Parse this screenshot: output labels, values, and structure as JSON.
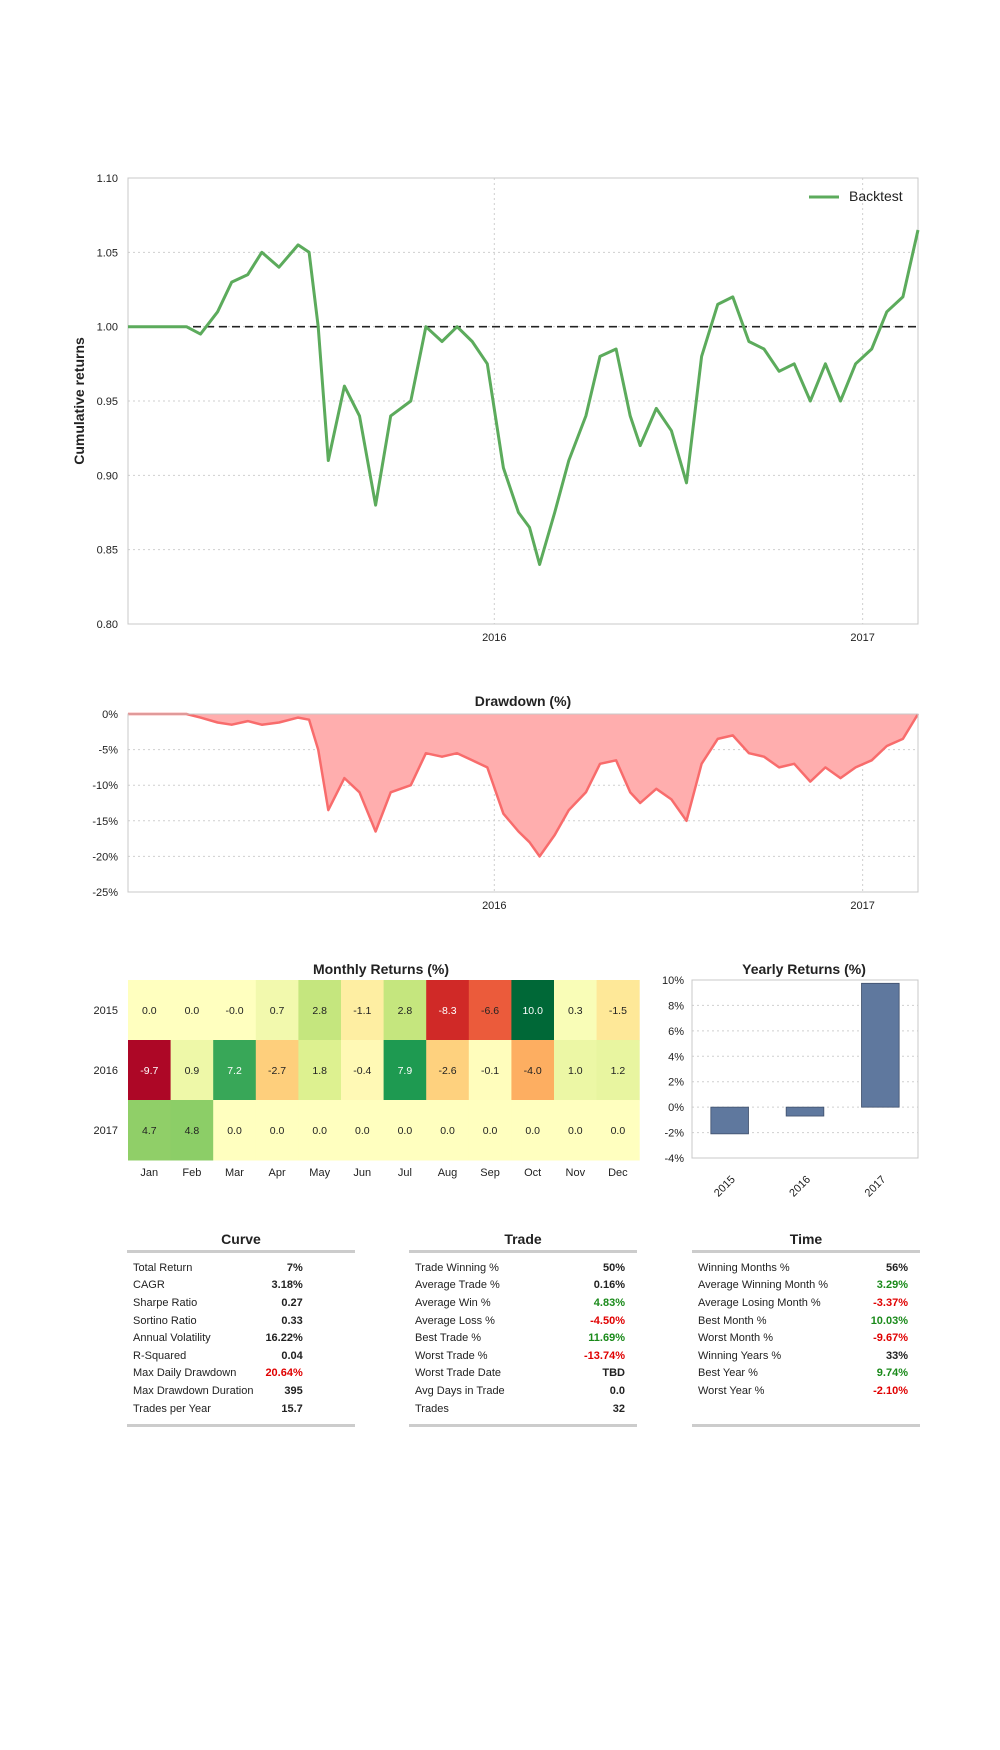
{
  "chart_data": [
    {
      "type": "line",
      "ylabel": "Cumulative returns",
      "legend": "top-right",
      "x_ticks": [
        "2016",
        "2017"
      ],
      "y_ticks": [
        "1.10",
        "1.05",
        "1.00",
        "0.95",
        "0.90",
        "0.85",
        "0.80"
      ],
      "ylim": [
        0.8,
        1.1
      ],
      "xlim": [
        "2015-01-02",
        "2017-02-25"
      ],
      "reference_line": 1.0,
      "grid": true,
      "series": [
        {
          "name": "Backtest",
          "color": "#5cab5c",
          "x": [
            "2015-01-02",
            "2015-02-15",
            "2015-03-01",
            "2015-03-15",
            "2015-04-01",
            "2015-04-15",
            "2015-05-01",
            "2015-05-15",
            "2015-06-01",
            "2015-06-20",
            "2015-07-01",
            "2015-07-10",
            "2015-07-20",
            "2015-08-05",
            "2015-08-20",
            "2015-09-05",
            "2015-09-20",
            "2015-10-10",
            "2015-10-25",
            "2015-11-10",
            "2015-11-25",
            "2015-12-10",
            "2015-12-25",
            "2016-01-10",
            "2016-01-25",
            "2016-02-05",
            "2016-02-15",
            "2016-03-01",
            "2016-03-15",
            "2016-04-01",
            "2016-04-15",
            "2016-05-01",
            "2016-05-15",
            "2016-05-25",
            "2016-06-10",
            "2016-06-25",
            "2016-07-10",
            "2016-07-25",
            "2016-08-10",
            "2016-08-25",
            "2016-09-10",
            "2016-09-25",
            "2016-10-10",
            "2016-10-25",
            "2016-11-10",
            "2016-11-25",
            "2016-12-10",
            "2016-12-25",
            "2017-01-10",
            "2017-01-25",
            "2017-02-10",
            "2017-02-25"
          ],
          "values": [
            1.0,
            1.0,
            1.0,
            0.995,
            1.01,
            1.03,
            1.035,
            1.05,
            1.04,
            1.055,
            1.05,
            1.0,
            0.91,
            0.96,
            0.94,
            0.88,
            0.94,
            0.95,
            1.0,
            0.99,
            1.0,
            0.99,
            0.975,
            0.905,
            0.875,
            0.865,
            0.84,
            0.875,
            0.91,
            0.94,
            0.98,
            0.985,
            0.94,
            0.92,
            0.945,
            0.93,
            0.895,
            0.98,
            1.015,
            1.02,
            0.99,
            0.985,
            0.97,
            0.975,
            0.95,
            0.975,
            0.95,
            0.975,
            0.985,
            1.01,
            1.02,
            1.065
          ]
        }
      ]
    },
    {
      "type": "area",
      "title": "Drawdown (%)",
      "x_ticks": [
        "2016",
        "2017"
      ],
      "y_ticks": [
        "0%",
        "-5%",
        "-10%",
        "-15%",
        "-20%",
        "-25%"
      ],
      "ylim": [
        -25,
        0
      ],
      "xlim": [
        "2015-01-02",
        "2017-02-25"
      ],
      "grid": true,
      "series": [
        {
          "color": "#f86c6c",
          "fill": "#ffaeae",
          "x": [
            "2015-01-02",
            "2015-02-15",
            "2015-03-01",
            "2015-03-15",
            "2015-04-01",
            "2015-04-15",
            "2015-05-01",
            "2015-05-15",
            "2015-06-01",
            "2015-06-20",
            "2015-07-01",
            "2015-07-10",
            "2015-07-20",
            "2015-08-05",
            "2015-08-20",
            "2015-09-05",
            "2015-09-20",
            "2015-10-10",
            "2015-10-25",
            "2015-11-10",
            "2015-11-25",
            "2015-12-10",
            "2015-12-25",
            "2016-01-10",
            "2016-01-25",
            "2016-02-05",
            "2016-02-15",
            "2016-03-01",
            "2016-03-15",
            "2016-04-01",
            "2016-04-15",
            "2016-05-01",
            "2016-05-15",
            "2016-05-25",
            "2016-06-10",
            "2016-06-25",
            "2016-07-10",
            "2016-07-25",
            "2016-08-10",
            "2016-08-25",
            "2016-09-10",
            "2016-09-25",
            "2016-10-10",
            "2016-10-25",
            "2016-11-10",
            "2016-11-25",
            "2016-12-10",
            "2016-12-25",
            "2017-01-10",
            "2017-01-25",
            "2017-02-10",
            "2017-02-25"
          ],
          "values": [
            0,
            0,
            0,
            -0.5,
            -1.2,
            -1.5,
            -1.0,
            -1.5,
            -1.2,
            -0.5,
            -0.8,
            -5.0,
            -13.5,
            -9.0,
            -11.0,
            -16.5,
            -11.0,
            -10.0,
            -5.5,
            -6.0,
            -5.5,
            -6.5,
            -7.5,
            -14.0,
            -16.5,
            -18.0,
            -20.0,
            -17.0,
            -13.5,
            -11.0,
            -7.0,
            -6.5,
            -11.0,
            -12.5,
            -10.5,
            -12.0,
            -15.0,
            -7.0,
            -3.5,
            -3.0,
            -5.5,
            -6.0,
            -7.5,
            -7.0,
            -9.5,
            -7.5,
            -9.0,
            -7.5,
            -6.5,
            -4.5,
            -3.5,
            0
          ]
        }
      ]
    },
    {
      "type": "heatmap",
      "title": "Monthly Returns (%)",
      "rows": [
        "2015",
        "2016",
        "2017"
      ],
      "columns": [
        "Jan",
        "Feb",
        "Mar",
        "Apr",
        "May",
        "Jun",
        "Jul",
        "Aug",
        "Sep",
        "Oct",
        "Nov",
        "Dec"
      ],
      "values": [
        [
          0.0,
          0.0,
          -0.0,
          0.7,
          2.8,
          -1.1,
          2.8,
          -8.3,
          -6.6,
          10.0,
          0.3,
          -1.5
        ],
        [
          -9.7,
          0.9,
          7.2,
          -2.7,
          1.8,
          -0.4,
          7.9,
          -2.6,
          -0.1,
          -4.0,
          1.0,
          1.2
        ],
        [
          4.7,
          4.8,
          0.0,
          0.0,
          0.0,
          0.0,
          0.0,
          0.0,
          0.0,
          0.0,
          0.0,
          0.0
        ]
      ],
      "labels": [
        [
          "0.0",
          "0.0",
          "-0.0",
          "0.7",
          "2.8",
          "-1.1",
          "2.8",
          "-8.3",
          "-6.6",
          "10.0",
          "0.3",
          "-1.5"
        ],
        [
          "-9.7",
          "0.9",
          "7.2",
          "-2.7",
          "1.8",
          "-0.4",
          "7.9",
          "-2.6",
          "-0.1",
          "-4.0",
          "1.0",
          "1.2"
        ],
        [
          "4.7",
          "4.8",
          "0.0",
          "0.0",
          "0.0",
          "0.0",
          "0.0",
          "0.0",
          "0.0",
          "0.0",
          "0.0",
          "0.0"
        ]
      ],
      "colormap": "RdYlGn"
    },
    {
      "type": "bar",
      "title": "Yearly Returns (%)",
      "categories": [
        "2015",
        "2016",
        "2017"
      ],
      "values": [
        -2.1,
        -0.7,
        9.74
      ],
      "y_ticks": [
        "10%",
        "8%",
        "6%",
        "4%",
        "2%",
        "0%",
        "-2%",
        "-4%"
      ],
      "ylim": [
        -4,
        10
      ],
      "bar_color": "#5f789e",
      "grid": true
    }
  ],
  "stats": {
    "curve": {
      "title": "Curve",
      "rows": [
        {
          "label": "Total Return",
          "value": "7%",
          "color": "#222222"
        },
        {
          "label": "CAGR",
          "value": "3.18%",
          "color": "#222222"
        },
        {
          "label": "Sharpe Ratio",
          "value": "0.27",
          "color": "#222222"
        },
        {
          "label": "Sortino Ratio",
          "value": "0.33",
          "color": "#222222"
        },
        {
          "label": "Annual Volatility",
          "value": "16.22%",
          "color": "#222222"
        },
        {
          "label": "R-Squared",
          "value": "0.04",
          "color": "#222222"
        },
        {
          "label": "Max Daily Drawdown",
          "value": "20.64%",
          "color": "#e00000"
        },
        {
          "label": "Max Drawdown Duration",
          "value": "395",
          "color": "#222222"
        },
        {
          "label": "Trades per Year",
          "value": "15.7",
          "color": "#222222"
        }
      ]
    },
    "trade": {
      "title": "Trade",
      "rows": [
        {
          "label": "Trade Winning %",
          "value": "50%",
          "color": "#222222"
        },
        {
          "label": "Average Trade %",
          "value": "0.16%",
          "color": "#222222"
        },
        {
          "label": "Average Win %",
          "value": "4.83%",
          "color": "#1a8a1a"
        },
        {
          "label": "Average Loss %",
          "value": "-4.50%",
          "color": "#e00000"
        },
        {
          "label": "Best Trade %",
          "value": "11.69%",
          "color": "#1a8a1a"
        },
        {
          "label": "Worst Trade %",
          "value": "-13.74%",
          "color": "#e00000"
        },
        {
          "label": "Worst Trade Date",
          "value": "TBD",
          "color": "#222222"
        },
        {
          "label": "Avg Days in Trade",
          "value": "0.0",
          "color": "#222222"
        },
        {
          "label": "Trades",
          "value": "32",
          "color": "#222222"
        }
      ]
    },
    "time": {
      "title": "Time",
      "rows": [
        {
          "label": "Winning Months %",
          "value": "56%",
          "color": "#222222"
        },
        {
          "label": "Average Winning Month %",
          "value": "3.29%",
          "color": "#1a8a1a"
        },
        {
          "label": "Average Losing Month %",
          "value": "-3.37%",
          "color": "#e00000"
        },
        {
          "label": "Best Month %",
          "value": "10.03%",
          "color": "#1a8a1a"
        },
        {
          "label": "Worst Month %",
          "value": "-9.67%",
          "color": "#e00000"
        },
        {
          "label": "Winning Years %",
          "value": "33%",
          "color": "#222222"
        },
        {
          "label": "Best Year %",
          "value": "9.74%",
          "color": "#1a8a1a"
        },
        {
          "label": "Worst Year %",
          "value": "-2.10%",
          "color": "#e00000"
        }
      ]
    }
  }
}
